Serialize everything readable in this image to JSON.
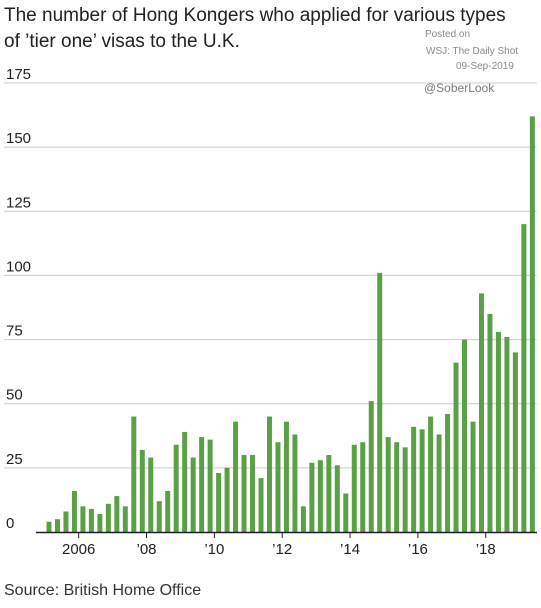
{
  "chart_data": {
    "type": "bar",
    "title": "The number of Hong Kongers who applied for various types of ’tier one’ visas to the U.K.",
    "xlabel": "",
    "ylabel": "",
    "ylim": [
      0,
      175
    ],
    "yticks": [
      {
        "value": 0,
        "label": "0"
      },
      {
        "value": 25,
        "label": "25"
      },
      {
        "value": 50,
        "label": "50"
      },
      {
        "value": 75,
        "label": "75"
      },
      {
        "value": 100,
        "label": "100"
      },
      {
        "value": 125,
        "label": "125"
      },
      {
        "value": 150,
        "label": "150"
      },
      {
        "value": 175,
        "label": "175"
      }
    ],
    "xticks": [
      {
        "x": "2006",
        "label": "2006"
      },
      {
        "x": "2008",
        "label": "’08"
      },
      {
        "x": "2010",
        "label": "’10"
      },
      {
        "x": "2012",
        "label": "’12"
      },
      {
        "x": "2014",
        "label": "’14"
      },
      {
        "x": "2016",
        "label": "’16"
      },
      {
        "x": "2018",
        "label": "’18"
      }
    ],
    "grid": true,
    "bar_color": "#5aa046",
    "axis_color": "#222222",
    "grid_color": "#cccccc",
    "values": [
      4,
      5,
      8,
      16,
      10,
      9,
      7,
      11,
      14,
      10,
      45,
      32,
      29,
      12,
      16,
      34,
      39,
      29,
      37,
      36,
      23,
      25,
      43,
      30,
      30,
      21,
      45,
      35,
      43,
      38,
      10,
      27,
      28,
      30,
      26,
      15,
      34,
      35,
      51,
      101,
      37,
      35,
      33,
      41,
      40,
      45,
      38,
      46,
      66,
      75,
      43,
      93,
      85,
      78,
      76,
      70,
      120,
      162
    ]
  },
  "watermark": {
    "posted": "Posted on",
    "source": "WSJ: The Daily Shot",
    "date": "09-Sep-2019",
    "handle": "@SoberLook"
  },
  "source_note": "Source: British Home Office"
}
